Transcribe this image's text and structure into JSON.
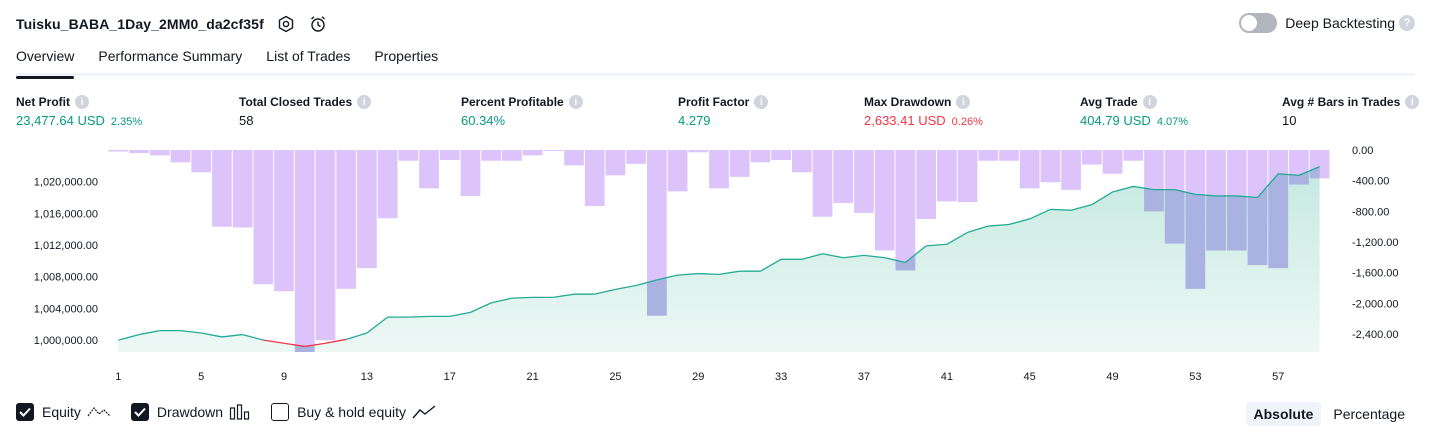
{
  "header": {
    "title": "Tuisku_BABA_1Day_2MM0_da2cf35f",
    "deep_backtesting_label": "Deep Backtesting",
    "help_glyph": "?"
  },
  "tabs": [
    {
      "label": "Overview",
      "active": true
    },
    {
      "label": "Performance Summary",
      "active": false
    },
    {
      "label": "List of Trades",
      "active": false
    },
    {
      "label": "Properties",
      "active": false
    }
  ],
  "metrics": {
    "info_glyph": "i",
    "net_profit": {
      "label": "Net Profit",
      "value": "23,477.64 USD",
      "pct": "2.35%"
    },
    "total_closed_trades": {
      "label": "Total Closed Trades",
      "value": "58"
    },
    "percent_profitable": {
      "label": "Percent Profitable",
      "value": "60.34%"
    },
    "profit_factor": {
      "label": "Profit Factor",
      "value": "4.279"
    },
    "max_drawdown": {
      "label": "Max Drawdown",
      "value": "2,633.41 USD",
      "pct": "0.26%"
    },
    "avg_trade": {
      "label": "Avg Trade",
      "value": "404.79 USD",
      "pct": "4.07%"
    },
    "avg_bars": {
      "label": "Avg # Bars in Trades",
      "value": "10"
    }
  },
  "legend": {
    "equity": {
      "label": "Equity",
      "checked": true
    },
    "drawdown": {
      "label": "Drawdown",
      "checked": true
    },
    "buy_hold": {
      "label": "Buy & hold equity",
      "checked": false
    }
  },
  "mode": {
    "absolute": "Absolute",
    "percentage": "Percentage",
    "selected": "absolute"
  },
  "colors": {
    "equity_up": "#22ab94",
    "equity_down": "#f23645",
    "equity_fill": "#d5efe9",
    "drawdown_bar": "#dcc4fb",
    "drawdown_overlap": "#a9b2e0",
    "profit_text": "#089981",
    "loss_text": "#f23645"
  },
  "chart_data": {
    "type": "bar+area",
    "x_ticks": [
      "1",
      "5",
      "9",
      "13",
      "17",
      "21",
      "25",
      "29",
      "33",
      "37",
      "41",
      "45",
      "49",
      "53",
      "57"
    ],
    "left_axis": {
      "ticks": [
        "1,000,000.00",
        "1,004,000.00",
        "1,008,000.00",
        "1,012,000.00",
        "1,016,000.00",
        "1,020,000.00"
      ],
      "ylim": [
        998500,
        1024000
      ]
    },
    "right_axis": {
      "ticks": [
        "0.00",
        "-400.00",
        "-800.00",
        "-1,200.00",
        "-1,600.00",
        "-2,000.00",
        "-2,400.00"
      ],
      "ylim": [
        -2633.41,
        0
      ]
    },
    "series": [
      {
        "name": "Equity",
        "x": [
          1,
          2,
          3,
          4,
          5,
          6,
          7,
          8,
          9,
          10,
          11,
          12,
          13,
          14,
          15,
          16,
          17,
          18,
          19,
          20,
          21,
          22,
          23,
          24,
          25,
          26,
          27,
          28,
          29,
          30,
          31,
          32,
          33,
          34,
          35,
          36,
          37,
          38,
          39,
          40,
          41,
          42,
          43,
          44,
          45,
          46,
          47,
          48,
          49,
          50,
          51,
          52,
          53,
          54,
          55,
          56,
          57,
          58,
          59
        ],
        "values": [
          1000000,
          1000700,
          1001200,
          1001200,
          1000900,
          1000400,
          1000700,
          1000000,
          999600,
          999200,
          999600,
          1000100,
          1000900,
          1002900,
          1002900,
          1003000,
          1003000,
          1003500,
          1004700,
          1005300,
          1005400,
          1005400,
          1005800,
          1005800,
          1006400,
          1006900,
          1007600,
          1008200,
          1008400,
          1008300,
          1008700,
          1008700,
          1010200,
          1010200,
          1010900,
          1010400,
          1010700,
          1010400,
          1009800,
          1011900,
          1012100,
          1013600,
          1014400,
          1014600,
          1015300,
          1016500,
          1016400,
          1017100,
          1018700,
          1019400,
          1019000,
          1019000,
          1018400,
          1018200,
          1018200,
          1018000,
          1021000,
          1020800,
          1021900
        ]
      },
      {
        "name": "Drawdown",
        "x": [
          1,
          2,
          3,
          4,
          5,
          6,
          7,
          8,
          9,
          10,
          11,
          12,
          13,
          14,
          15,
          16,
          17,
          18,
          19,
          20,
          21,
          22,
          23,
          24,
          25,
          26,
          27,
          28,
          29,
          30,
          31,
          32,
          33,
          34,
          35,
          36,
          37,
          38,
          39,
          40,
          41,
          42,
          43,
          44,
          45,
          46,
          47,
          48,
          49,
          50,
          51,
          52,
          53,
          54,
          55,
          56,
          57,
          58,
          59
        ],
        "values": [
          -20,
          -40,
          -70,
          -160,
          -290,
          -1000,
          -1010,
          -1750,
          -1840,
          -2633.41,
          -2480,
          -1810,
          -1540,
          -890,
          -140,
          -500,
          -130,
          -600,
          -140,
          -140,
          -70,
          -10,
          -200,
          -730,
          -330,
          -180,
          -2160,
          -540,
          -30,
          -500,
          -350,
          -160,
          -130,
          -290,
          -870,
          -690,
          -820,
          -1310,
          -1570,
          -900,
          -670,
          -680,
          -140,
          -140,
          -500,
          -420,
          -520,
          -190,
          -310,
          -140,
          -800,
          -1220,
          -1810,
          -1310,
          -1310,
          -1500,
          -1540,
          -450,
          -370
        ]
      }
    ],
    "title": "",
    "xlabel": "",
    "ylabel": "",
    "grid": false,
    "legend_position": "bottom-left"
  }
}
